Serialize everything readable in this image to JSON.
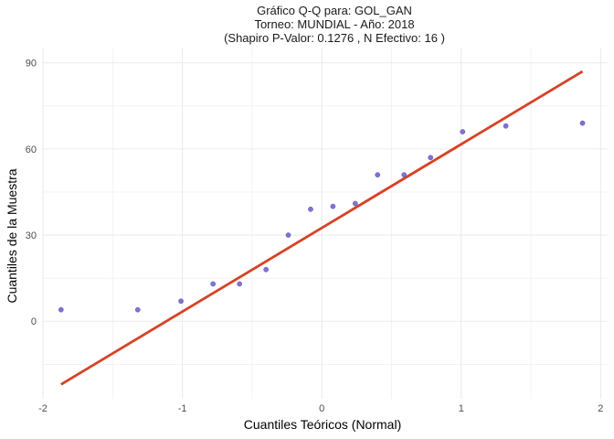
{
  "chart_data": {
    "type": "scatter",
    "title_lines": [
      "Gráfico Q-Q para: GOL_GAN",
      "Torneo: MUNDIAL - Año: 2018",
      "(Shapiro P-Valor: 0.1276 , N Efectivo: 16 )"
    ],
    "xlabel": "Cuantiles Teóricos (Normal)",
    "ylabel": "Cuantiles de la Muestra",
    "xlim": [
      -2.0,
      2.05
    ],
    "ylim": [
      -27,
      95
    ],
    "x_ticks": [
      -2,
      -1,
      0,
      1,
      2
    ],
    "x_tick_labels": [
      "-2",
      "-1",
      "0",
      "1",
      "2"
    ],
    "y_ticks": [
      0,
      30,
      60,
      90
    ],
    "y_tick_labels": [
      "0",
      "30",
      "60",
      "90"
    ],
    "grid": true,
    "points": {
      "x": [
        -1.87,
        -1.32,
        -1.01,
        -0.78,
        -0.59,
        -0.4,
        -0.24,
        -0.08,
        0.08,
        0.24,
        0.4,
        0.59,
        0.78,
        1.01,
        1.32,
        1.87
      ],
      "y": [
        4,
        4,
        7,
        13,
        13,
        18,
        30,
        39,
        40,
        41,
        51,
        51,
        57,
        66,
        68,
        69
      ]
    },
    "reference_line": {
      "x": [
        -1.87,
        1.87
      ],
      "y": [
        -22,
        87
      ]
    },
    "colors": {
      "points": "#6a5acd",
      "line": "#d64325",
      "grid": "#ebebeb"
    }
  }
}
